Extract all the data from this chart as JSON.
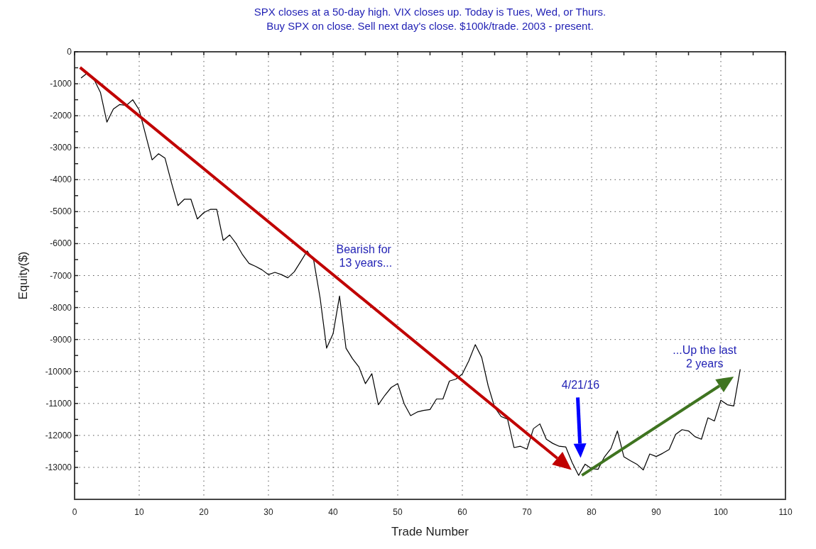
{
  "chart_data": {
    "type": "line",
    "title": "SPX closes at a 50-day high. VIX closes up. Today is Tues, Wed, or Thurs.",
    "subtitle": "Buy SPX on close. Sell next day's close. $100k/trade. 2003 - present.",
    "xlabel": "Trade Number",
    "ylabel": "Equity($)",
    "x": [
      1,
      2,
      3,
      4,
      5,
      6,
      7,
      8,
      9,
      10,
      11,
      12,
      13,
      14,
      15,
      16,
      17,
      18,
      19,
      20,
      21,
      22,
      23,
      24,
      25,
      26,
      27,
      28,
      29,
      30,
      31,
      32,
      33,
      34,
      35,
      36,
      37,
      38,
      39,
      40,
      41,
      42,
      43,
      44,
      45,
      46,
      47,
      48,
      49,
      50,
      51,
      52,
      53,
      54,
      55,
      56,
      57,
      58,
      59,
      60,
      61,
      62,
      63,
      64,
      65,
      66,
      67,
      68,
      69,
      70,
      71,
      72,
      73,
      74,
      75,
      76,
      77,
      78,
      79,
      80,
      81,
      82,
      83,
      84,
      85,
      86,
      87,
      88,
      89,
      90,
      91,
      92,
      93,
      94,
      95,
      96,
      97,
      98,
      99,
      100,
      101,
      102,
      103
    ],
    "series": [
      {
        "color": "#000000",
        "values": [
          -820,
          -660,
          -860,
          -1270,
          -2200,
          -1790,
          -1650,
          -1680,
          -1500,
          -1820,
          -2600,
          -3380,
          -3190,
          -3330,
          -4100,
          -4810,
          -4610,
          -4610,
          -5230,
          -5030,
          -4930,
          -4930,
          -5900,
          -5730,
          -6000,
          -6350,
          -6620,
          -6710,
          -6820,
          -6970,
          -6900,
          -6970,
          -7070,
          -6880,
          -6560,
          -6230,
          -6520,
          -7710,
          -9270,
          -8820,
          -7640,
          -9270,
          -9600,
          -9860,
          -10380,
          -10070,
          -11040,
          -10750,
          -10500,
          -10380,
          -11010,
          -11380,
          -11270,
          -11220,
          -11190,
          -10860,
          -10860,
          -10300,
          -10240,
          -10080,
          -9670,
          -9160,
          -9560,
          -10450,
          -11120,
          -11410,
          -11490,
          -12380,
          -12340,
          -12430,
          -11790,
          -11640,
          -12120,
          -12250,
          -12340,
          -12360,
          -12850,
          -13250,
          -12900,
          -13040,
          -13060,
          -12670,
          -12410,
          -11860,
          -12670,
          -12790,
          -12900,
          -13080,
          -12580,
          -12660,
          -12560,
          -12440,
          -11970,
          -11820,
          -11860,
          -12040,
          -12120,
          -11450,
          -11550,
          -10900,
          -11040,
          -11080,
          -9930
        ]
      }
    ],
    "xlim": [
      0,
      110
    ],
    "xticks": [
      0,
      {
        "value": 5,
        "label": null
      },
      10,
      {
        "value": 15,
        "label": null
      },
      20,
      {
        "value": 25,
        "label": null
      },
      30,
      {
        "value": 35,
        "label": null
      },
      40,
      {
        "value": 45,
        "label": null
      },
      50,
      {
        "value": 55,
        "label": null
      },
      60,
      {
        "value": 65,
        "label": null
      },
      70,
      {
        "value": 75,
        "label": null
      },
      80,
      {
        "value": 85,
        "label": null
      },
      90,
      {
        "value": 95,
        "label": null
      },
      100,
      {
        "value": 105,
        "label": null
      },
      110
    ],
    "ylim": [
      -14000,
      0
    ],
    "yticks": [
      0,
      {
        "value": -500,
        "label": null
      },
      -1000,
      {
        "value": -1500,
        "label": null
      },
      -2000,
      {
        "value": -2500,
        "label": null
      },
      -3000,
      {
        "value": -3500,
        "label": null
      },
      -4000,
      {
        "value": -4500,
        "label": null
      },
      -5000,
      {
        "value": -5500,
        "label": null
      },
      -6000,
      {
        "value": -6500,
        "label": null
      },
      -7000,
      {
        "value": -7500,
        "label": null
      },
      -8000,
      {
        "value": -8500,
        "label": null
      },
      -9000,
      {
        "value": -9500,
        "label": null
      },
      -10000,
      {
        "value": -10500,
        "label": null
      },
      -11000,
      {
        "value": -11500,
        "label": null
      },
      -12000,
      {
        "value": -12500,
        "label": null
      },
      -13000,
      {
        "value": -13500,
        "label": null
      }
    ],
    "grid": true,
    "marker": "none",
    "line_style": "solid",
    "annotations": [
      "Bearish for\n13 years...",
      "4/21/16",
      "...Up the last\n2 years"
    ]
  }
}
